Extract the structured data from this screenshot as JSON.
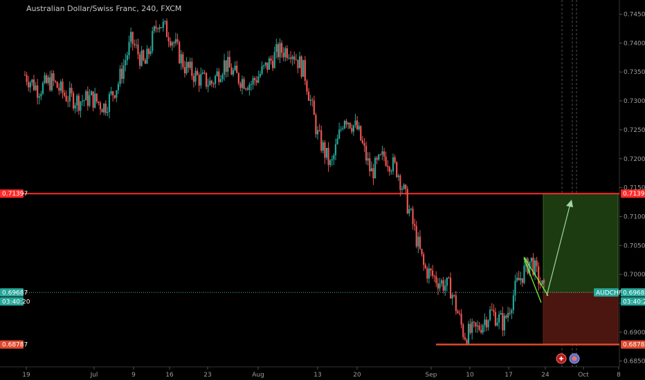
{
  "header": {
    "title": "Australian Dollar/Swiss Franc, 240, FXCM"
  },
  "colors": {
    "background": "#000000",
    "bull": "#26a69a",
    "bear": "#ef5350",
    "resistance": "#ff2a2a",
    "support": "#e0482d",
    "target_zone": "#1c3b10",
    "stop_zone": "#4a160f",
    "price_line": "#4db6ac",
    "wedge": "#7cff3a"
  },
  "price_axis": {
    "ticks": [
      "0.74500",
      "0.74000",
      "0.73500",
      "0.73000",
      "0.72500",
      "0.72000",
      "0.71500",
      "0.71000",
      "0.70500",
      "0.70000",
      "0.69500",
      "0.69000",
      "0.68500"
    ],
    "resistance_label": "0.71397",
    "current_label": "0.69687",
    "countdown": "03:40:20",
    "support_label": "0.68787",
    "symbol_label": "AUDCHF"
  },
  "time_axis": {
    "ticks": [
      "19",
      "Jul",
      "9",
      "16",
      "23",
      "Aug",
      "13",
      "20",
      "Sep",
      "10",
      "17",
      "24",
      "Oct",
      "8"
    ]
  },
  "icons": [
    "flag-icon",
    "event-icon"
  ],
  "chart_data": {
    "type": "candlestick",
    "title": "Australian Dollar/Swiss Franc, 240, FXCM",
    "symbol": "AUDCHF",
    "ylim": [
      0.684,
      0.7465
    ],
    "levels": {
      "resistance": 0.71397,
      "current": 0.69687,
      "support": 0.68787
    },
    "path": [
      [
        "19",
        0.7345
      ],
      [
        "",
        0.732
      ],
      [
        "",
        0.7335
      ],
      [
        "",
        0.731
      ],
      [
        "",
        0.73
      ],
      [
        "Jul",
        0.7305
      ],
      [
        "",
        0.729
      ],
      [
        "",
        0.733
      ],
      [
        "9",
        0.7405
      ],
      [
        "",
        0.736
      ],
      [
        "",
        0.744
      ],
      [
        "16",
        0.741
      ],
      [
        "",
        0.736
      ],
      [
        "",
        0.734
      ],
      [
        "23",
        0.733
      ],
      [
        "",
        0.7365
      ],
      [
        "",
        0.734
      ],
      [
        "Aug",
        0.733
      ],
      [
        "",
        0.7355
      ],
      [
        "",
        0.7385
      ],
      [
        "",
        0.739
      ],
      [
        "",
        0.735
      ],
      [
        "13",
        0.724
      ],
      [
        "",
        0.7185
      ],
      [
        "20",
        0.7275
      ],
      [
        "",
        0.725
      ],
      [
        "",
        0.7175
      ],
      [
        "",
        0.7205
      ],
      [
        "",
        0.718
      ],
      [
        "Sep",
        0.71
      ],
      [
        "",
        0.701
      ],
      [
        "",
        0.699
      ],
      [
        "",
        0.6975
      ],
      [
        "10",
        0.6895
      ],
      [
        "",
        0.6905
      ],
      [
        "",
        0.6935
      ],
      [
        "17",
        0.6915
      ],
      [
        "",
        0.6985
      ],
      [
        "",
        0.7025
      ],
      [
        "24",
        0.697
      ]
    ],
    "projection_arrow": "up to 0.71397"
  }
}
